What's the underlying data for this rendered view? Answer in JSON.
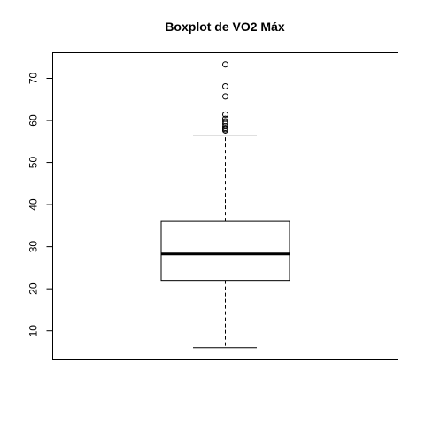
{
  "chart_data": {
    "type": "boxplot",
    "title": "Boxplot de VO2 Máx",
    "xlabel": "",
    "ylabel": "",
    "ylim": [
      3.1,
      76.1
    ],
    "yticks": [
      10,
      20,
      30,
      40,
      50,
      60,
      70
    ],
    "box": {
      "whisker_low": 6.0,
      "q1": 22.0,
      "median": 28.3,
      "q3": 36.0,
      "whisker_high": 56.5
    },
    "outliers": [
      57.6,
      57.9,
      58.2,
      58.6,
      59.2,
      59.8,
      60.4,
      61.4,
      65.7,
      68.1,
      73.3
    ],
    "grid": false
  }
}
